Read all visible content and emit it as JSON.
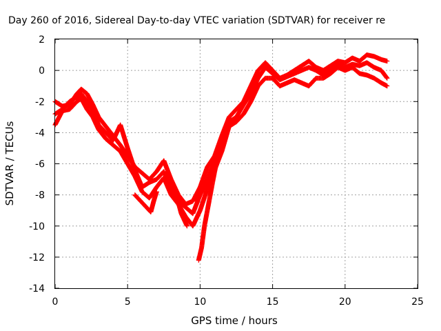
{
  "chart_data": {
    "type": "scatter",
    "title": "Day 260 of 2016, Sidereal Day-to-day VTEC variation (SDTVAR) for receiver re",
    "xlabel": "GPS time / hours",
    "ylabel": "SDTVAR / TECUs",
    "xlim": [
      0,
      25
    ],
    "ylim": [
      -14,
      2
    ],
    "xticks": [
      0,
      5,
      10,
      15,
      20,
      25
    ],
    "yticks": [
      -14,
      -12,
      -10,
      -8,
      -6,
      -4,
      -2,
      0,
      2
    ],
    "grid": true,
    "marker": "plus",
    "color": "#ff0000",
    "traces": [
      {
        "x": [
          0.0,
          0.5,
          1.0,
          1.5,
          1.8,
          2.2,
          2.6,
          3.0,
          3.5,
          4.0,
          4.5,
          5.0,
          5.5,
          6.0,
          6.5,
          7.0,
          7.5,
          8.0,
          8.5,
          9.0,
          9.5,
          10.0,
          10.5,
          11.0,
          11.5,
          12.0,
          12.5,
          13.0,
          13.5,
          14.0,
          14.5,
          15.0,
          15.5,
          16.0,
          16.5,
          17.0,
          17.5,
          18.0,
          18.5,
          19.0,
          19.5,
          20.0,
          20.5,
          21.0,
          21.5,
          22.0,
          22.5,
          22.9
        ],
        "y": [
          -2.0,
          -2.3,
          -2.2,
          -1.5,
          -1.2,
          -1.5,
          -2.2,
          -3.0,
          -3.6,
          -4.2,
          -4.8,
          -5.5,
          -6.2,
          -6.6,
          -7.0,
          -6.5,
          -5.8,
          -7.0,
          -8.0,
          -8.6,
          -8.4,
          -7.5,
          -6.2,
          -5.5,
          -4.2,
          -3.0,
          -2.5,
          -2.0,
          -1.0,
          0.0,
          0.5,
          0.0,
          -0.5,
          -0.3,
          0.0,
          0.3,
          0.6,
          0.2,
          0.0,
          0.3,
          0.6,
          0.5,
          0.8,
          0.6,
          1.0,
          0.9,
          0.7,
          0.6
        ]
      },
      {
        "x": [
          0.0,
          0.5,
          1.0,
          1.5,
          1.8,
          2.2,
          2.6,
          3.0,
          3.5,
          4.0,
          4.5,
          5.0,
          5.5,
          6.0,
          6.5,
          7.0,
          7.5,
          8.0,
          8.5,
          9.0,
          9.5,
          10.0,
          10.5,
          11.0,
          11.5,
          12.0,
          12.5,
          13.0,
          13.5,
          14.0,
          14.5,
          15.0,
          15.5,
          16.0,
          16.5,
          17.0,
          17.5,
          18.0,
          18.5,
          19.0,
          19.5,
          20.0,
          20.5,
          21.0,
          21.5,
          22.0,
          22.5,
          22.9
        ],
        "y": [
          -2.8,
          -2.5,
          -2.0,
          -1.7,
          -1.5,
          -2.0,
          -2.6,
          -3.5,
          -4.0,
          -4.5,
          -3.5,
          -5.0,
          -6.4,
          -7.5,
          -7.2,
          -7.0,
          -6.5,
          -7.6,
          -8.4,
          -8.8,
          -9.2,
          -8.0,
          -7.0,
          -5.8,
          -4.8,
          -3.3,
          -3.0,
          -2.2,
          -1.5,
          -0.5,
          0.2,
          -0.2,
          -0.6,
          -0.4,
          -0.2,
          0.0,
          0.2,
          0.0,
          -0.3,
          0.0,
          0.4,
          0.2,
          0.4,
          0.3,
          0.5,
          0.2,
          0.0,
          -0.5
        ]
      },
      {
        "x": [
          0.0,
          0.5,
          1.0,
          1.5,
          1.8,
          2.2,
          2.6,
          3.0,
          3.5,
          4.0,
          4.5,
          5.0,
          5.5,
          6.0,
          6.5,
          7.0,
          7.5,
          8.0,
          8.5,
          9.0,
          9.5,
          10.0,
          10.5,
          11.0,
          11.5,
          12.0,
          12.5,
          13.0,
          13.5,
          14.0,
          14.5,
          15.0,
          15.5,
          16.0,
          16.5,
          17.0,
          17.5,
          18.0,
          18.5,
          19.0,
          19.5,
          20.0,
          20.5,
          21.0,
          21.5,
          22.0,
          22.5,
          22.9
        ],
        "y": [
          -3.5,
          -2.6,
          -2.5,
          -2.0,
          -1.8,
          -2.5,
          -3.0,
          -3.8,
          -4.4,
          -4.8,
          -5.2,
          -6.0,
          -6.8,
          -7.8,
          -8.2,
          -7.5,
          -6.9,
          -8.0,
          -8.6,
          -9.4,
          -10.0,
          -9.0,
          -7.6,
          -6.4,
          -5.2,
          -3.6,
          -3.3,
          -2.8,
          -2.0,
          -1.0,
          -0.5,
          -0.5,
          -1.0,
          -0.8,
          -0.6,
          -0.8,
          -1.0,
          -0.5,
          -0.5,
          -0.2,
          0.2,
          0.0,
          0.2,
          -0.2,
          -0.3,
          -0.5,
          -0.8,
          -1.0
        ]
      },
      {
        "x": [
          5.5,
          5.8,
          6.1,
          6.4,
          6.6,
          6.8,
          7.0
        ],
        "y": [
          -8.0,
          -8.3,
          -8.6,
          -8.9,
          -9.1,
          -8.4,
          -7.8
        ]
      },
      {
        "x": [
          8.5,
          8.7,
          8.9,
          9.1
        ],
        "y": [
          -8.5,
          -9.2,
          -9.6,
          -10.0
        ]
      },
      {
        "x": [
          9.9,
          10.1,
          10.3,
          10.6,
          10.9,
          11.2,
          11.5
        ],
        "y": [
          -12.2,
          -11.4,
          -10.0,
          -8.5,
          -7.0,
          -5.6,
          -4.6
        ]
      }
    ]
  }
}
